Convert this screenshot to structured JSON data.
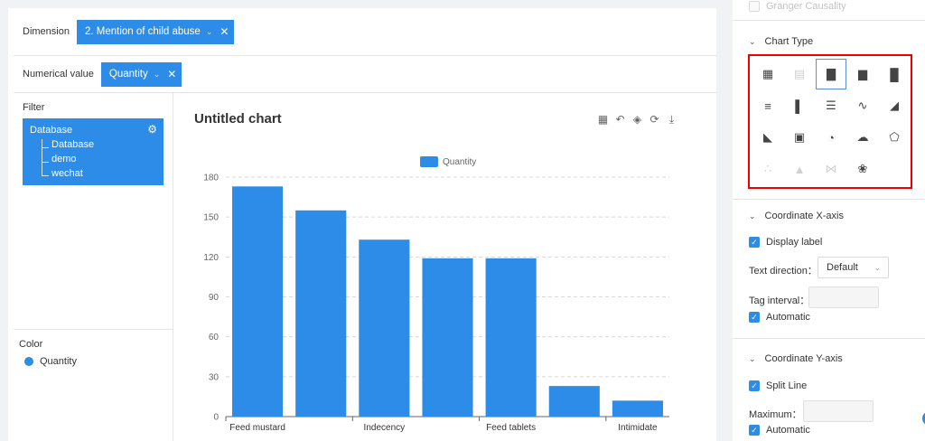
{
  "fields": {
    "dimension": {
      "label": "Dimension",
      "chip": "2. Mention of child abuse"
    },
    "numerical": {
      "label": "Numerical value",
      "chip": "Quantity"
    }
  },
  "filter": {
    "title": "Filter",
    "root": "Database",
    "children": [
      "Database",
      "demo",
      "wechat"
    ]
  },
  "color": {
    "title": "Color",
    "item": "Quantity",
    "swatch": "#2d8ce8"
  },
  "chart": {
    "title": "Untitled chart"
  },
  "chart_data": {
    "type": "bar",
    "legend": "Quantity",
    "legend_position": "top-center",
    "categories": [
      "Feed mustard",
      "",
      "Indecency",
      "",
      "Feed tablets",
      "",
      "Intimidate"
    ],
    "x_tick_labels": [
      "Feed mustard",
      "Indecency",
      "Feed tablets",
      "Intimidate"
    ],
    "series": [
      {
        "name": "Quantity",
        "values": [
          173,
          155,
          133,
          119,
          119,
          23,
          12
        ]
      }
    ],
    "ylim": [
      0,
      180
    ],
    "yticks": [
      0,
      30,
      60,
      90,
      120,
      150,
      180
    ],
    "grid": true,
    "color": "#2d8ce8"
  },
  "right": {
    "granger": "Granger Causality",
    "chart_type": {
      "title": "Chart Type",
      "icons": [
        [
          "table-icon",
          "pivot-table-icon",
          "bar-chart-icon",
          "stacked-bar-icon",
          "column-group-icon"
        ],
        [
          "horizontal-bar-icon",
          "horizontal-stacked-bar-icon",
          "horizontal-list-bar-icon",
          "line-chart-icon",
          "area-chart-icon"
        ],
        [
          "line-area-icon",
          "picture-chart-icon",
          "pie-chart-icon",
          "cloud-icon",
          "radar-icon"
        ],
        [
          "scatter-icon",
          "funnel-icon",
          "sankey-icon",
          "map-icon",
          ""
        ]
      ]
    },
    "x_axis": {
      "title": "Coordinate X-axis",
      "display_label": "Display label",
      "text_direction_label": "Text direction：",
      "text_direction_value": "Default",
      "tag_interval_label": "Tag interval：",
      "automatic": "Automatic"
    },
    "y_axis": {
      "title": "Coordinate Y-axis",
      "split_line": "Split Line",
      "maximum_label": "Maximum：",
      "automatic": "Automatic"
    }
  }
}
